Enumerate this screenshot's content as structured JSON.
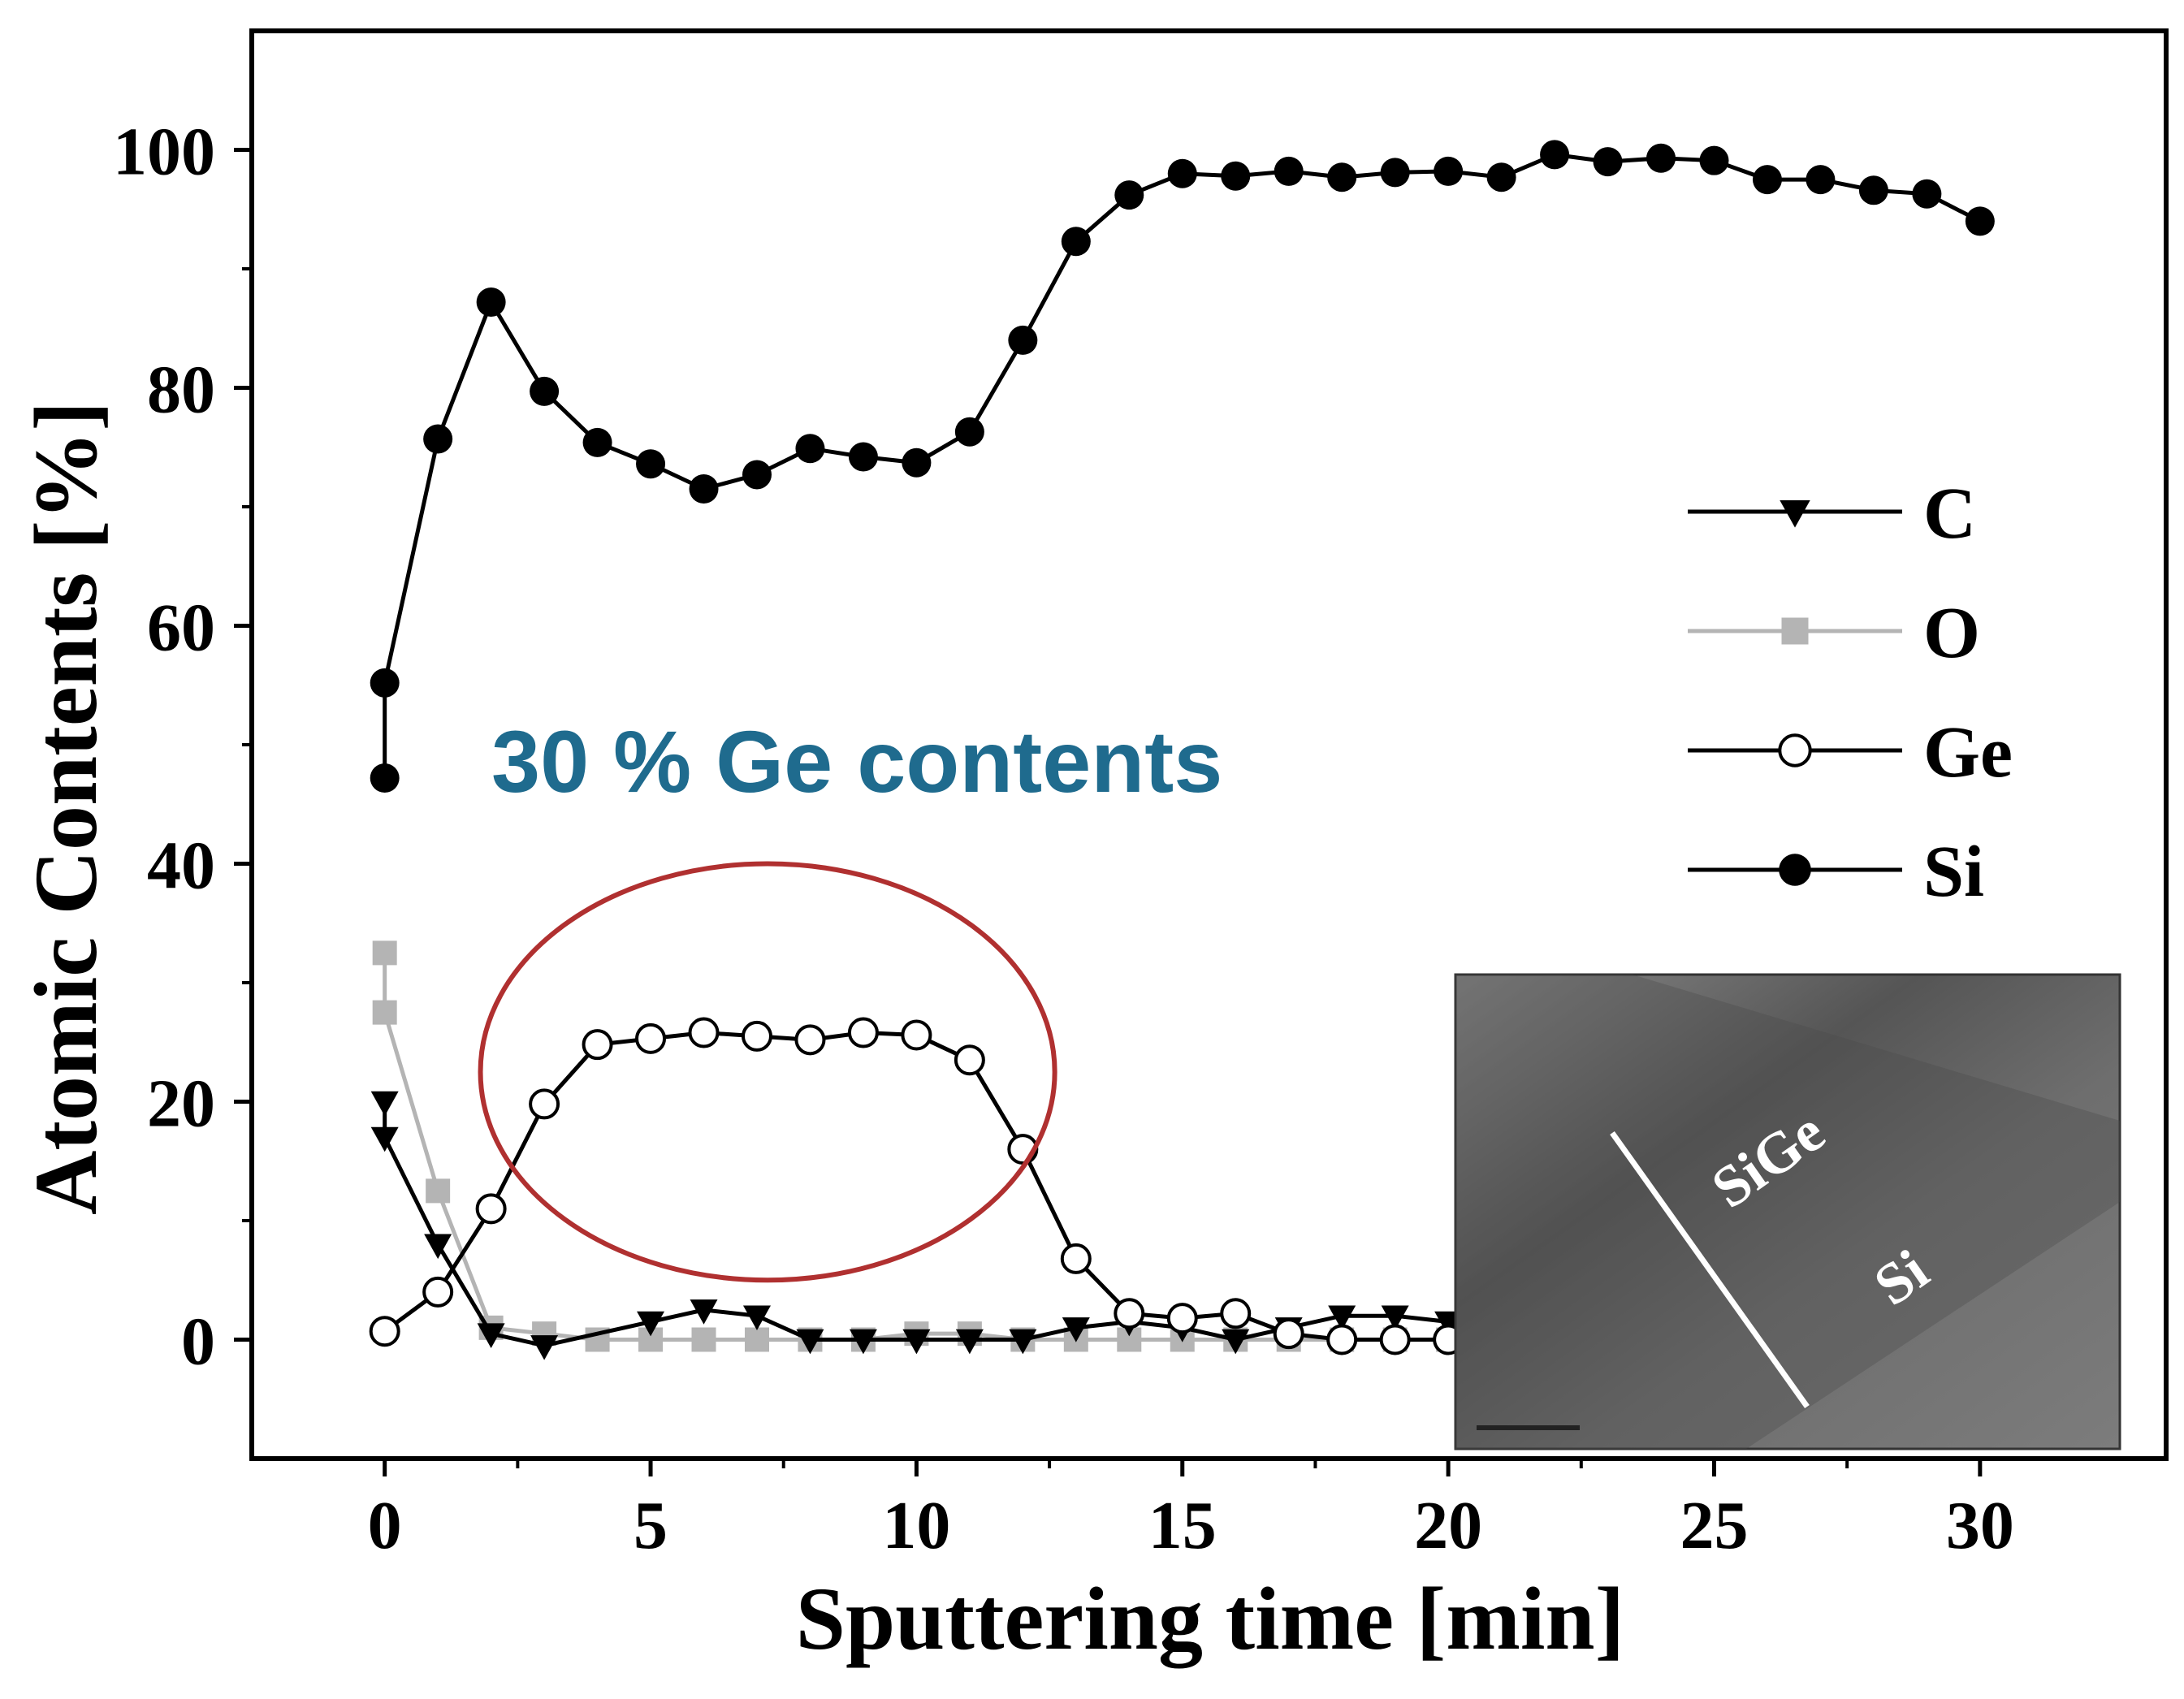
{
  "chart_data": {
    "type": "line",
    "title": "",
    "xlabel": "Sputtering time [min]",
    "ylabel": "Atomic Contents [%]",
    "xlim": [
      -2.5,
      33.5
    ],
    "ylim": [
      -10,
      110
    ],
    "xticks": [
      0,
      5,
      10,
      15,
      20,
      25,
      30
    ],
    "yticks": [
      0,
      20,
      40,
      60,
      80,
      100
    ],
    "grid": false,
    "legend_position": "right-middle",
    "annotation": {
      "text": "30 % Ge contents",
      "color": "#1f6b8e"
    },
    "highlight_ellipse": {
      "cx": 7.2,
      "cy": 22.5,
      "rx": 5.4,
      "ry": 17.5,
      "color": "#b03030"
    },
    "series": [
      {
        "name": "C",
        "marker": "triangle-down",
        "color": "#000000",
        "x": [
          0,
          0,
          1,
          2,
          3,
          5,
          6,
          7,
          8,
          9,
          10,
          11,
          12,
          13,
          14,
          15,
          16,
          17,
          18,
          19,
          20
        ],
        "y": [
          20,
          17,
          8,
          0.5,
          -0.5,
          1.5,
          2.5,
          2,
          0,
          0,
          0,
          0,
          0,
          1,
          1.5,
          1,
          0,
          1,
          2,
          2,
          1.5
        ]
      },
      {
        "name": "O",
        "marker": "square",
        "color": "#b4b4b4",
        "x": [
          0,
          0,
          1,
          2,
          3,
          4,
          5,
          6,
          7,
          8,
          9,
          10,
          11,
          12,
          13,
          14,
          15,
          16,
          17,
          18,
          19,
          20
        ],
        "y": [
          32.5,
          27.5,
          12.5,
          1,
          0.5,
          0,
          0,
          0,
          0,
          0,
          0,
          0.5,
          0.5,
          0,
          0,
          0,
          0,
          0,
          0,
          0,
          0,
          0
        ]
      },
      {
        "name": "Ge",
        "marker": "circle-open",
        "color": "#000000",
        "x": [
          0,
          1,
          2,
          3,
          4,
          5,
          6,
          7,
          8,
          9,
          10,
          11,
          12,
          13,
          14,
          15,
          16,
          17,
          18,
          19,
          20
        ],
        "y": [
          0.7,
          4,
          11,
          19.8,
          24.8,
          25.3,
          25.8,
          25.5,
          25.2,
          25.8,
          25.6,
          23.5,
          16,
          6.8,
          2.2,
          1.8,
          2.2,
          0.5,
          0,
          0,
          0
        ]
      },
      {
        "name": "Si",
        "marker": "circle-filled",
        "color": "#000000",
        "x": [
          0,
          0,
          1,
          2,
          3,
          4,
          5,
          6,
          7,
          8,
          9,
          10,
          11,
          12,
          13,
          14,
          15,
          16,
          17,
          18,
          19,
          20,
          21,
          22,
          23,
          24,
          25,
          26,
          27,
          28,
          29,
          30
        ],
        "y": [
          47.2,
          55.2,
          75.7,
          87.2,
          79.7,
          75.4,
          73.6,
          71.5,
          72.7,
          74.9,
          74.2,
          73.7,
          76.3,
          84,
          92.3,
          96.2,
          98,
          97.8,
          98.2,
          97.7,
          98.1,
          98.2,
          97.7,
          99.6,
          99,
          99.3,
          99.1,
          97.5,
          97.5,
          96.6,
          96.3,
          94
        ]
      }
    ]
  },
  "inset": {
    "description_labels": {
      "top": "SiGe",
      "bottom": "Si"
    }
  }
}
